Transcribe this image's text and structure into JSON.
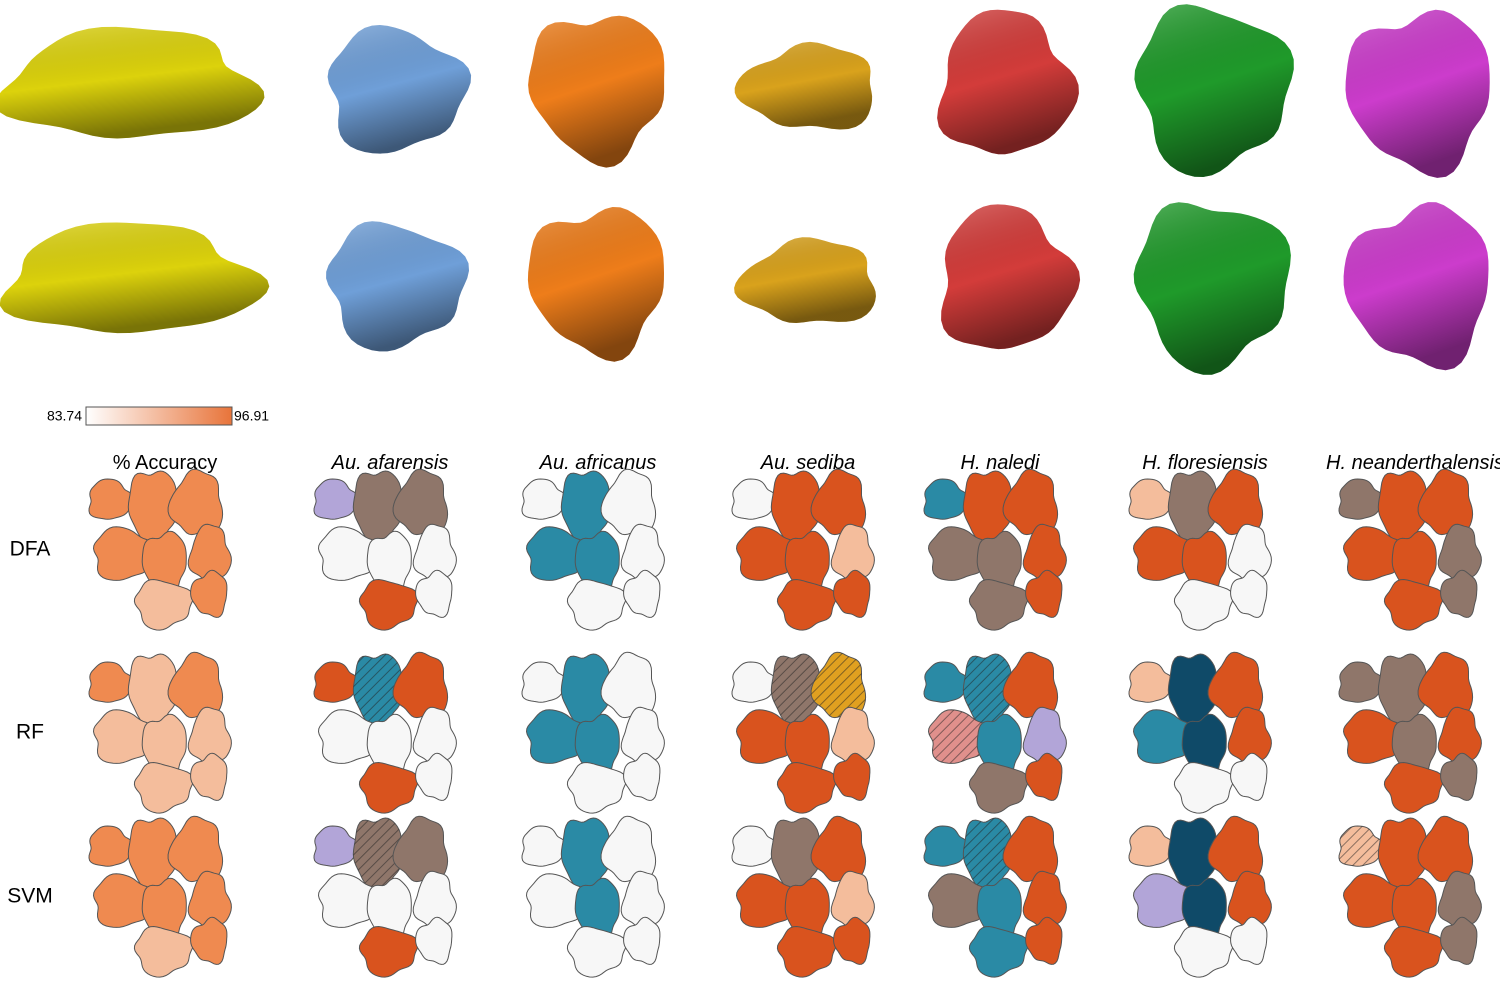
{
  "colorbar": {
    "min": 83.74,
    "max": 96.91
  },
  "columns": [
    "% Accuracy",
    "Au. afarensis",
    "Au. africanus",
    "Au. sediba",
    "H. naledi",
    "H. floresiensis",
    "H. neanderthalensis"
  ],
  "rows": [
    "DFA",
    "RF",
    "SVM"
  ]
}
